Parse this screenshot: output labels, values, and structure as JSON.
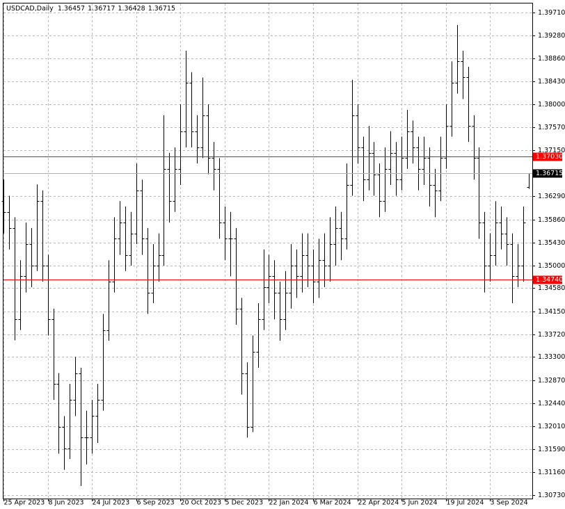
{
  "chart_data": {
    "type": "ohlc",
    "symbol": "USDCAD,Daily",
    "categories": [
      "25 Apr 2023",
      null,
      null,
      null,
      null,
      null,
      null,
      null,
      "8 Jun 2023",
      null,
      null,
      null,
      null,
      null,
      null,
      null,
      "24 Jul 2023",
      null,
      null,
      null,
      null,
      null,
      null,
      null,
      "6 Sep 2023",
      null,
      null,
      null,
      null,
      null,
      null,
      null,
      "20 Oct 2023",
      null,
      null,
      null,
      null,
      null,
      null,
      null,
      "5 Dec 2023",
      null,
      null,
      null,
      null,
      null,
      null,
      null,
      "22 Jan 2024",
      null,
      null,
      null,
      null,
      null,
      null,
      null,
      "6 Mar 2024",
      null,
      null,
      null,
      null,
      null,
      null,
      null,
      "22 Apr 2024",
      null,
      null,
      null,
      null,
      null,
      null,
      null,
      "5 Jun 2024",
      null,
      null,
      null,
      null,
      null,
      null,
      null,
      "19 Jul 2024",
      null,
      null,
      null,
      null,
      null,
      null,
      null,
      "3 Sep 2024",
      null,
      null,
      null,
      null,
      null,
      null,
      null
    ],
    "open": [
      1.362,
      1.36,
      1.357,
      1.34,
      1.348,
      1.354,
      1.35,
      1.362,
      1.35,
      1.34,
      1.328,
      1.32,
      1.316,
      1.325,
      1.33,
      1.318,
      1.318,
      1.322,
      1.325,
      1.338,
      1.347,
      1.355,
      1.358,
      1.352,
      1.356,
      1.364,
      1.355,
      1.345,
      1.35,
      1.352,
      1.368,
      1.362,
      1.368,
      1.375,
      1.384,
      1.375,
      1.372,
      1.378,
      1.37,
      1.368,
      1.358,
      1.355,
      1.355,
      1.342,
      1.33,
      1.32,
      1.334,
      1.34,
      1.346,
      1.348,
      1.345,
      1.34,
      1.345,
      1.35,
      1.348,
      1.352,
      1.35,
      1.347,
      1.351,
      1.35,
      1.354,
      1.357,
      1.355,
      1.365,
      1.378,
      1.372,
      1.366,
      1.371,
      1.367,
      1.362,
      1.368,
      1.371,
      1.366,
      1.37,
      1.375,
      1.372,
      1.368,
      1.37,
      1.365,
      1.364,
      1.37,
      1.376,
      1.384,
      1.388,
      1.385,
      1.376,
      1.37,
      1.358,
      1.35,
      1.352,
      1.358,
      1.356,
      1.354,
      1.348,
      1.35,
      1.36457
    ],
    "high": [
      1.366,
      1.363,
      1.359,
      1.351,
      1.358,
      1.357,
      1.3651,
      1.364,
      1.352,
      1.342,
      1.33,
      1.322,
      1.328,
      1.333,
      1.331,
      1.323,
      1.325,
      1.328,
      1.341,
      1.351,
      1.359,
      1.362,
      1.361,
      1.36,
      1.369,
      1.366,
      1.357,
      1.354,
      1.356,
      1.378,
      1.371,
      1.372,
      1.38,
      1.39,
      1.386,
      1.378,
      1.385,
      1.38,
      1.373,
      1.37,
      1.361,
      1.36,
      1.357,
      1.344,
      1.332,
      1.337,
      1.343,
      1.353,
      1.352,
      1.351,
      1.347,
      1.349,
      1.354,
      1.353,
      1.356,
      1.356,
      1.353,
      1.355,
      1.356,
      1.359,
      1.361,
      1.36,
      1.369,
      1.3846,
      1.38,
      1.374,
      1.376,
      1.373,
      1.369,
      1.372,
      1.375,
      1.373,
      1.374,
      1.379,
      1.377,
      1.374,
      1.374,
      1.372,
      1.368,
      1.374,
      1.38,
      1.388,
      1.3948,
      1.39,
      1.387,
      1.378,
      1.372,
      1.36,
      1.356,
      1.362,
      1.361,
      1.359,
      1.356,
      1.354,
      1.361,
      1.36717
    ],
    "low": [
      1.356,
      1.353,
      1.3361,
      1.338,
      1.345,
      1.346,
      1.349,
      1.347,
      1.337,
      1.325,
      1.315,
      1.312,
      1.314,
      1.322,
      1.309,
      1.313,
      1.315,
      1.317,
      1.323,
      1.336,
      1.345,
      1.352,
      1.349,
      1.35,
      1.354,
      1.352,
      1.341,
      1.343,
      1.347,
      1.35,
      1.358,
      1.36,
      1.365,
      1.372,
      1.372,
      1.369,
      1.37,
      1.367,
      1.364,
      1.355,
      1.351,
      1.348,
      1.339,
      1.326,
      1.318,
      1.319,
      1.331,
      1.338,
      1.343,
      1.34,
      1.336,
      1.338,
      1.342,
      1.344,
      1.345,
      1.346,
      1.343,
      1.344,
      1.346,
      1.347,
      1.35,
      1.351,
      1.353,
      1.363,
      1.369,
      1.362,
      1.364,
      1.363,
      1.359,
      1.36,
      1.365,
      1.363,
      1.364,
      1.368,
      1.369,
      1.364,
      1.365,
      1.361,
      1.359,
      1.362,
      1.368,
      1.374,
      1.382,
      1.381,
      1.373,
      1.366,
      1.355,
      1.345,
      1.347,
      1.35,
      1.353,
      1.35,
      1.343,
      1.346,
      1.347,
      1.36428
    ],
    "close": [
      1.36,
      1.357,
      1.34,
      1.348,
      1.354,
      1.35,
      1.362,
      1.35,
      1.34,
      1.328,
      1.32,
      1.316,
      1.325,
      1.33,
      1.318,
      1.318,
      1.322,
      1.325,
      1.338,
      1.347,
      1.355,
      1.358,
      1.352,
      1.356,
      1.364,
      1.355,
      1.345,
      1.35,
      1.352,
      1.368,
      1.362,
      1.368,
      1.375,
      1.384,
      1.375,
      1.372,
      1.378,
      1.37,
      1.368,
      1.358,
      1.355,
      1.355,
      1.342,
      1.33,
      1.32,
      1.334,
      1.34,
      1.346,
      1.348,
      1.345,
      1.34,
      1.345,
      1.35,
      1.348,
      1.352,
      1.35,
      1.347,
      1.351,
      1.35,
      1.354,
      1.357,
      1.355,
      1.365,
      1.378,
      1.372,
      1.366,
      1.371,
      1.367,
      1.362,
      1.368,
      1.371,
      1.366,
      1.37,
      1.375,
      1.372,
      1.368,
      1.37,
      1.365,
      1.364,
      1.37,
      1.376,
      1.384,
      1.388,
      1.385,
      1.376,
      1.37,
      1.358,
      1.35,
      1.352,
      1.358,
      1.356,
      1.354,
      1.348,
      1.35,
      1.358,
      1.36715
    ],
    "ylim": [
      1.30665,
      1.39878
    ],
    "yticks": [
      {
        "value": 1.3971,
        "label": "1.39710"
      },
      {
        "value": 1.3928,
        "label": "1.39280"
      },
      {
        "value": 1.3886,
        "label": "1.38860"
      },
      {
        "value": 1.3843,
        "label": "1.38430"
      },
      {
        "value": 1.38,
        "label": "1.38000"
      },
      {
        "value": 1.3757,
        "label": "1.37570"
      },
      {
        "value": 1.3715,
        "label": "1.37150"
      },
      {
        "value": 1.3629,
        "label": "1.36290"
      },
      {
        "value": 1.3586,
        "label": "1.35860"
      },
      {
        "value": 1.3543,
        "label": "1.35430"
      },
      {
        "value": 1.35,
        "label": "1.35000"
      },
      {
        "value": 1.3458,
        "label": "1.34580"
      },
      {
        "value": 1.3415,
        "label": "1.34150"
      },
      {
        "value": 1.3372,
        "label": "1.33720"
      },
      {
        "value": 1.333,
        "label": "1.33300"
      },
      {
        "value": 1.3287,
        "label": "1.32870"
      },
      {
        "value": 1.3244,
        "label": "1.32440"
      },
      {
        "value": 1.3201,
        "label": "1.32010"
      },
      {
        "value": 1.3159,
        "label": "1.31590"
      },
      {
        "value": 1.3116,
        "label": "1.31160"
      },
      {
        "value": 1.3073,
        "label": "1.30730"
      }
    ],
    "hlines": [
      {
        "value": 1.3703,
        "label": "1.37030",
        "color": "#ff0000"
      },
      {
        "value": 1.3474,
        "label": "1.34740",
        "color": "#ff0000"
      }
    ],
    "color": "#000000",
    "grid": true
  }
}
